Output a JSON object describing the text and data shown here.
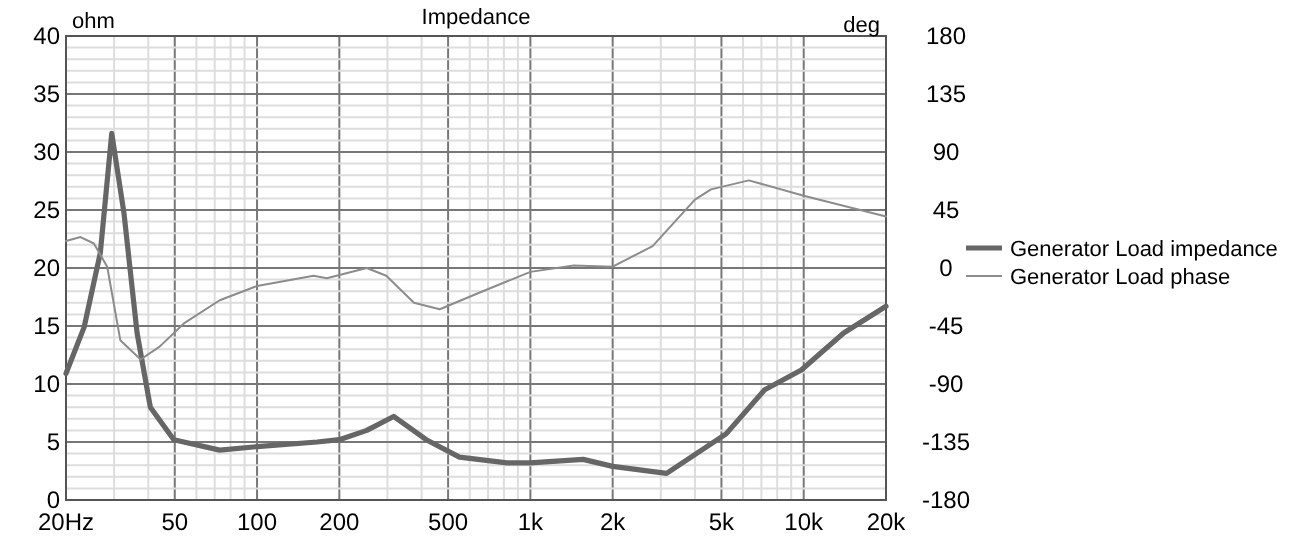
{
  "chart_data": {
    "type": "line",
    "title": "Impedance",
    "ylabel": "ohm",
    "y2label": "deg",
    "log": "x",
    "grid": true,
    "legend": "right",
    "xlim": [
      20,
      20000
    ],
    "xticks": [
      {
        "value": 20,
        "label": "20Hz"
      },
      {
        "value": 30,
        "label": null
      },
      {
        "value": 40,
        "label": null
      },
      50,
      {
        "value": 60,
        "label": null
      },
      {
        "value": 70,
        "label": null
      },
      {
        "value": 80,
        "label": null
      },
      {
        "value": 90,
        "label": null
      },
      100,
      200,
      {
        "value": 300,
        "label": null
      },
      {
        "value": 400,
        "label": null
      },
      500,
      {
        "value": 600,
        "label": null
      },
      {
        "value": 700,
        "label": null
      },
      {
        "value": 800,
        "label": null
      },
      {
        "value": 900,
        "label": null
      },
      {
        "value": 1000,
        "label": "1k"
      },
      {
        "value": 2000,
        "label": "2k"
      },
      {
        "value": 3000,
        "label": null
      },
      {
        "value": 4000,
        "label": null
      },
      {
        "value": 5000,
        "label": "5k"
      },
      {
        "value": 6000,
        "label": null
      },
      {
        "value": 7000,
        "label": null
      },
      {
        "value": 8000,
        "label": null
      },
      {
        "value": 9000,
        "label": null
      },
      {
        "value": 10000,
        "label": "10k"
      },
      {
        "value": 20000,
        "label": "20k"
      }
    ],
    "ylim": [
      0,
      40
    ],
    "yticks": [
      0,
      {
        "value": 1,
        "label": null
      },
      {
        "value": 2,
        "label": null
      },
      {
        "value": 3,
        "label": null
      },
      {
        "value": 4,
        "label": null
      },
      5,
      {
        "value": 6,
        "label": null
      },
      {
        "value": 7,
        "label": null
      },
      {
        "value": 8,
        "label": null
      },
      {
        "value": 9,
        "label": null
      },
      10,
      {
        "value": 11,
        "label": null
      },
      {
        "value": 12,
        "label": null
      },
      {
        "value": 13,
        "label": null
      },
      {
        "value": 14,
        "label": null
      },
      15,
      {
        "value": 16,
        "label": null
      },
      {
        "value": 17,
        "label": null
      },
      {
        "value": 18,
        "label": null
      },
      {
        "value": 19,
        "label": null
      },
      20,
      {
        "value": 21,
        "label": null
      },
      {
        "value": 22,
        "label": null
      },
      {
        "value": 23,
        "label": null
      },
      {
        "value": 24,
        "label": null
      },
      25,
      {
        "value": 26,
        "label": null
      },
      {
        "value": 27,
        "label": null
      },
      {
        "value": 28,
        "label": null
      },
      {
        "value": 29,
        "label": null
      },
      30,
      {
        "value": 31,
        "label": null
      },
      {
        "value": 32,
        "label": null
      },
      {
        "value": 33,
        "label": null
      },
      {
        "value": 34,
        "label": null
      },
      35,
      {
        "value": 36,
        "label": null
      },
      {
        "value": 37,
        "label": null
      },
      {
        "value": 38,
        "label": null
      },
      {
        "value": 39,
        "label": null
      },
      40
    ],
    "y2lim": [
      -180,
      180
    ],
    "y2ticks": [
      -180,
      -135,
      -90,
      -45,
      0,
      45,
      90,
      135,
      180
    ],
    "series": [
      {
        "name": "Generator Load impedance",
        "color": "#666666",
        "x": [
          20,
          23.3,
          26.7,
          29.4,
          32.6,
          36.4,
          40.7,
          49.6,
          73,
          100,
          166,
          200,
          252,
          316,
          416,
          550,
          820,
          1000,
          1560,
          2000,
          3150,
          5200,
          7200,
          9800,
          14000,
          20000
        ],
        "values": [
          10.9,
          14.9,
          21.3,
          31.6,
          24.7,
          14.4,
          8.0,
          5.2,
          4.3,
          4.6,
          5,
          5.2,
          6.0,
          7.2,
          5.2,
          3.7,
          3.2,
          3.2,
          3.5,
          2.9,
          2.3,
          5.7,
          9.5,
          11.2,
          14.4,
          16.7
        ]
      },
      {
        "name": "Generator Load phase",
        "color": "#8c8c8c",
        "axis": "y2",
        "x": [
          20,
          22.6,
          25.3,
          28.3,
          31.6,
          37.5,
          44,
          54,
          73,
          100,
          161,
          180,
          252,
          297,
          375,
          466,
          653,
          1000,
          1440,
          2000,
          2800,
          4000,
          4580,
          6300,
          10000,
          20000
        ],
        "values": [
          21,
          24,
          19,
          1,
          -56,
          -71,
          -61,
          -43,
          -25,
          -14,
          -6,
          -8,
          0,
          -6,
          -27,
          -32,
          -19,
          -3,
          2,
          1,
          17,
          53,
          61,
          68,
          56,
          40
        ]
      }
    ]
  }
}
